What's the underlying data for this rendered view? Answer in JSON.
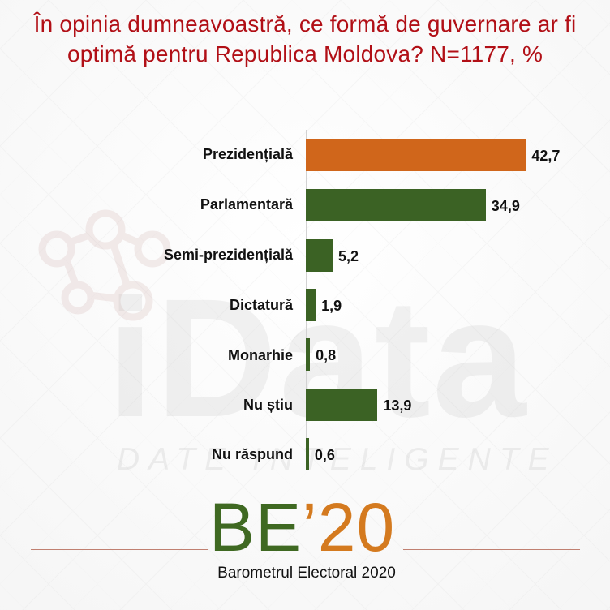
{
  "chart_data": {
    "type": "bar",
    "orientation": "horizontal",
    "title": "În opinia dumneavoastră, ce formă de guvernare ar fi optimă pentru Republica Moldova? N=1177, %",
    "categories": [
      "Prezidențială",
      "Parlamentară",
      "Semi-prezidențială",
      "Dictatură",
      "Monarhie",
      "Nu știu",
      "Nu răspund"
    ],
    "values": [
      42.7,
      34.9,
      5.2,
      1.9,
      0.8,
      13.9,
      0.6
    ],
    "value_labels": [
      "42,7",
      "34,9",
      "5,2",
      "1,9",
      "0,8",
      "13,9",
      "0,6"
    ],
    "xlim": [
      0,
      45
    ],
    "grid": false,
    "colors": [
      "#d0661b",
      "#3b6224",
      "#3b6224",
      "#3b6224",
      "#3b6224",
      "#3b6224",
      "#3b6224"
    ]
  },
  "branding": {
    "watermark_word": "iData",
    "watermark_subtitle": "DATE INTELIGENTE",
    "logo_main_green": "BE",
    "logo_main_orange": "’20",
    "logo_subtitle": "Barometrul Electoral 2020"
  },
  "colors": {
    "title": "#b10f16",
    "green": "#3b6224",
    "orange": "#d0661b",
    "line": "#c08071"
  }
}
